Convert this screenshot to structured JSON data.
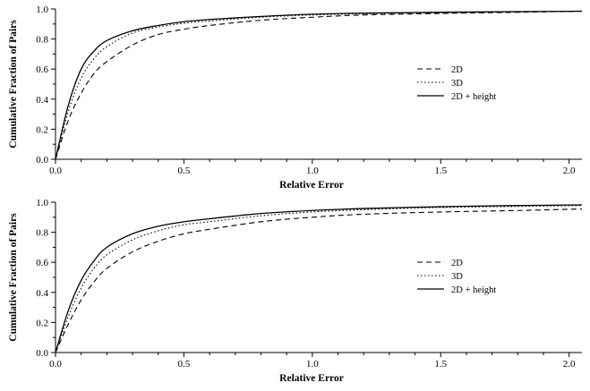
{
  "chart_data": [
    {
      "type": "line",
      "xlabel": "Relative Error",
      "ylabel": "Cumulative Fraction of Pairs",
      "xlim": [
        0,
        2.05
      ],
      "ylim": [
        0,
        1.0
      ],
      "x_ticks": [
        "0.0",
        "0.5",
        "1.0",
        "1.5",
        "2.0"
      ],
      "y_ticks": [
        "0.0",
        "0.2",
        "0.4",
        "0.6",
        "0.8",
        "1.0"
      ],
      "grid": false,
      "legend_position": "right",
      "x": [
        0,
        0.05,
        0.1,
        0.15,
        0.2,
        0.3,
        0.4,
        0.5,
        0.6,
        0.8,
        1.0,
        1.2,
        1.5,
        1.8,
        2.05
      ],
      "series": [
        {
          "name": "2D",
          "style": "dashed",
          "values": [
            0,
            0.26,
            0.44,
            0.57,
            0.65,
            0.76,
            0.83,
            0.865,
            0.89,
            0.925,
            0.945,
            0.96,
            0.97,
            0.978,
            0.985
          ]
        },
        {
          "name": "3D",
          "style": "dotted",
          "values": [
            0,
            0.32,
            0.54,
            0.67,
            0.75,
            0.84,
            0.88,
            0.905,
            0.92,
            0.945,
            0.96,
            0.968,
            0.975,
            0.98,
            0.985
          ]
        },
        {
          "name": "2D + height",
          "style": "solid",
          "values": [
            0,
            0.36,
            0.6,
            0.72,
            0.79,
            0.855,
            0.89,
            0.915,
            0.93,
            0.95,
            0.965,
            0.972,
            0.978,
            0.982,
            0.985
          ]
        }
      ]
    },
    {
      "type": "line",
      "xlabel": "Relative Error",
      "ylabel": "Cumulative Fraction of Pairs",
      "xlim": [
        0,
        2.05
      ],
      "ylim": [
        0,
        1.0
      ],
      "x_ticks": [
        "0.0",
        "0.5",
        "1.0",
        "1.5",
        "2.0"
      ],
      "y_ticks": [
        "0.0",
        "0.2",
        "0.4",
        "0.6",
        "0.8",
        "1.0"
      ],
      "grid": false,
      "legend_position": "right",
      "x": [
        0,
        0.05,
        0.1,
        0.15,
        0.2,
        0.3,
        0.4,
        0.5,
        0.6,
        0.8,
        1.0,
        1.2,
        1.5,
        1.8,
        2.05
      ],
      "series": [
        {
          "name": "2D",
          "style": "dashed",
          "values": [
            0,
            0.19,
            0.35,
            0.47,
            0.56,
            0.67,
            0.74,
            0.79,
            0.82,
            0.87,
            0.9,
            0.92,
            0.935,
            0.945,
            0.955
          ]
        },
        {
          "name": "3D",
          "style": "dotted",
          "values": [
            0,
            0.24,
            0.43,
            0.56,
            0.65,
            0.75,
            0.81,
            0.85,
            0.87,
            0.91,
            0.935,
            0.95,
            0.965,
            0.972,
            0.978
          ]
        },
        {
          "name": "2D + height",
          "style": "solid",
          "values": [
            0,
            0.28,
            0.48,
            0.61,
            0.7,
            0.79,
            0.84,
            0.87,
            0.89,
            0.925,
            0.945,
            0.958,
            0.97,
            0.978,
            0.982
          ]
        }
      ]
    }
  ]
}
